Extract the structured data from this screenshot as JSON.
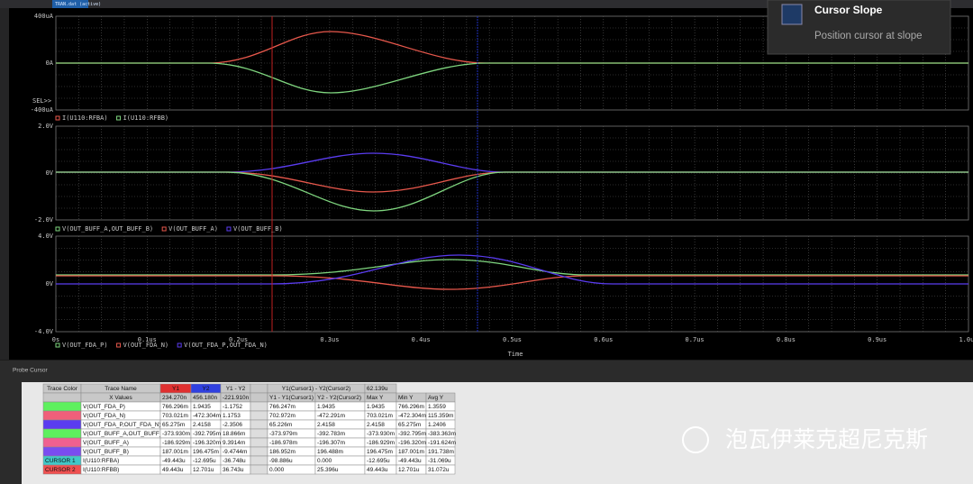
{
  "window": {
    "tab": "TRAN.dat (active)",
    "sel": "SEL>>"
  },
  "tooltip": {
    "title": "Cursor Slope",
    "text": "Position cursor at slope"
  },
  "plots": [
    {
      "yticks": [
        "400uA",
        "0A",
        "-400uA"
      ],
      "legend": [
        {
          "name": "I(U110:RFBA)",
          "color": "#e8584c"
        },
        {
          "name": "I(U110:RFBB)",
          "color": "#7fd67f"
        }
      ]
    },
    {
      "yticks": [
        "2.0V",
        "0V",
        "-2.0V"
      ],
      "legend": [
        {
          "name": "V(OUT_BUFF_A,OUT_BUFF_B)",
          "color": "#7fd67f"
        },
        {
          "name": "V(OUT_BUFF_A)",
          "color": "#e8584c"
        },
        {
          "name": "V(OUT_BUFF_B)",
          "color": "#5a3cf0"
        }
      ]
    },
    {
      "yticks": [
        "4.0V",
        "0V",
        "-4.0V"
      ],
      "legend": [
        {
          "name": "V(OUT_FDA_P)",
          "color": "#7fd67f"
        },
        {
          "name": "V(OUT_FDA_N)",
          "color": "#e8584c"
        },
        {
          "name": "V(OUT_FDA_P,OUT_FDA_N)",
          "color": "#5a3cf0"
        }
      ]
    }
  ],
  "x_axis": {
    "ticks": [
      "0s",
      "0.1us",
      "0.2us",
      "0.3us",
      "0.4us",
      "0.5us",
      "0.6us",
      "0.7us",
      "0.8us",
      "0.9us",
      "1.0us"
    ],
    "label": "Time"
  },
  "panel": {
    "title": "Probe Cursor"
  },
  "table": {
    "header": [
      "Trace Color",
      "Trace Name",
      "Y1",
      "Y2",
      "Y1 - Y2"
    ],
    "cursor_header": "Y1(Cursor1) - Y2(Cursor2)",
    "cursor_dx": "62.139u",
    "x_label": "X Values",
    "x_values": [
      "234.270n",
      "456.180n",
      "-221.910n"
    ],
    "cursor_subheader": [
      "Y1 - Y1(Cursor1)",
      "Y2 - Y2(Cursor2)",
      "Max Y",
      "Min Y",
      "Avg Y"
    ],
    "rows": [
      {
        "color": "#5ef05e",
        "name": "V(OUT_FDA_P)",
        "values": [
          "766.296m",
          "1.9435",
          "-1.1752"
        ],
        "cursor": [
          "766.247m",
          "1.9435",
          "1.9435",
          "766.296m",
          "1.3559"
        ]
      },
      {
        "color": "#f0607a",
        "name": "V(OUT_FDA_N)",
        "values": [
          "703.021m",
          "-472.304m",
          "1.1753"
        ],
        "cursor": [
          "702.972m",
          "-472.291m",
          "703.021m",
          "-472.304m",
          "115.359m"
        ]
      },
      {
        "color": "#5a3cf0",
        "name": "V(OUT_FDA_P,OUT_FDA_N)",
        "values": [
          "65.275m",
          "2.4158",
          "-2.3506"
        ],
        "cursor": [
          "65.226m",
          "2.4158",
          "2.4158",
          "65.275m",
          "1.2406"
        ]
      },
      {
        "color": "#5ef05e",
        "name": "V(OUT_BUFF_A,OUT_BUFF_B)",
        "values": [
          "-373.930m",
          "-392.795m",
          "18.866m"
        ],
        "cursor": [
          "-373.979m",
          "-392.783m",
          "-373.930m",
          "-392.795m",
          "-383.363m"
        ]
      },
      {
        "color": "#f06090",
        "name": "V(OUT_BUFF_A)",
        "values": [
          "-186.929m",
          "-196.320m",
          "9.3914m"
        ],
        "cursor": [
          "-186.978m",
          "-196.307m",
          "-186.929m",
          "-196.320m",
          "-191.624m"
        ]
      },
      {
        "color": "#7a4cf0",
        "name": "V(OUT_BUFF_B)",
        "values": [
          "187.001m",
          "196.475m",
          "-9.4744m"
        ],
        "cursor": [
          "186.952m",
          "196.488m",
          "196.475m",
          "187.001m",
          "191.738m"
        ]
      },
      {
        "color": "#40c8c8",
        "label": "CURSOR 1",
        "name": "I(U110:RFBA)",
        "values": [
          "-49.443u",
          "-12.695u",
          "-36.748u"
        ],
        "cursor": [
          "-98.886u",
          "0.000",
          "-12.695u",
          "-49.443u",
          "-31.069u"
        ]
      },
      {
        "color": "#f05050",
        "label": "CURSOR 2",
        "name": "I(U110:RFBB)",
        "values": [
          "49.443u",
          "12.701u",
          "36.743u"
        ],
        "cursor": [
          "0.000",
          "25.396u",
          "49.443u",
          "12.701u",
          "31.072u"
        ]
      }
    ]
  },
  "watermark": "泡瓦伊莱克超尼克斯"
}
